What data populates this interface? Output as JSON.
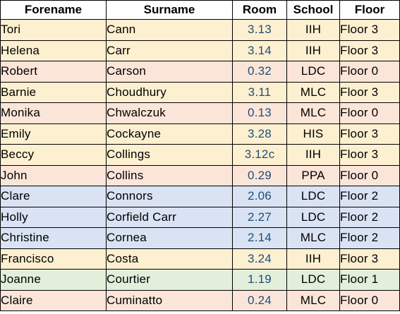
{
  "table": {
    "headers": {
      "forename": "Forename",
      "surname": "Surname",
      "room": "Room",
      "school": "School",
      "floor": "Floor"
    },
    "tone_colors": {
      "yellow": "#fdf0d0",
      "pink": "#fbe5d9",
      "blue": "#dae3f3",
      "green": "#e2efda"
    },
    "room_text_color": "#1f4e79",
    "rows": [
      {
        "forename": "Tori",
        "surname": "Cann",
        "room": "3.13",
        "school": "IIH",
        "floor": "Floor 3",
        "tone": "yellow"
      },
      {
        "forename": "Helena",
        "surname": "Carr",
        "room": "3.14",
        "school": "IIH",
        "floor": "Floor 3",
        "tone": "yellow"
      },
      {
        "forename": "Robert",
        "surname": "Carson",
        "room": "0.32",
        "school": "LDC",
        "floor": "Floor 0",
        "tone": "pink"
      },
      {
        "forename": "Barnie",
        "surname": "Choudhury",
        "room": "3.11",
        "school": "MLC",
        "floor": "Floor 3",
        "tone": "yellow"
      },
      {
        "forename": "Monika",
        "surname": "Chwalczuk",
        "room": "0.13",
        "school": "MLC",
        "floor": "Floor 0",
        "tone": "pink"
      },
      {
        "forename": "Emily",
        "surname": "Cockayne",
        "room": "3.28",
        "school": "HIS",
        "floor": "Floor 3",
        "tone": "yellow"
      },
      {
        "forename": "Beccy",
        "surname": "Collings",
        "room": "3.12c",
        "school": "IIH",
        "floor": "Floor 3",
        "tone": "yellow"
      },
      {
        "forename": "John",
        "surname": "Collins",
        "room": "0.29",
        "school": "PPA",
        "floor": "Floor 0",
        "tone": "pink"
      },
      {
        "forename": "Clare",
        "surname": "Connors",
        "room": "2.06",
        "school": "LDC",
        "floor": "Floor 2",
        "tone": "blue"
      },
      {
        "forename": "Holly",
        "surname": "Corfield Carr",
        "room": "2.27",
        "school": "LDC",
        "floor": "Floor 2",
        "tone": "blue"
      },
      {
        "forename": "Christine",
        "surname": "Cornea",
        "room": "2.14",
        "school": "MLC",
        "floor": "Floor 2",
        "tone": "blue"
      },
      {
        "forename": "Francisco",
        "surname": "Costa",
        "room": "3.24",
        "school": "IIH",
        "floor": "Floor 3",
        "tone": "yellow"
      },
      {
        "forename": "Joanne",
        "surname": "Courtier",
        "room": "1.19",
        "school": "LDC",
        "floor": "Floor 1",
        "tone": "green"
      },
      {
        "forename": "Claire",
        "surname": "Cuminatto",
        "room": "0.24",
        "school": "MLC",
        "floor": "Floor 0",
        "tone": "pink"
      }
    ]
  }
}
